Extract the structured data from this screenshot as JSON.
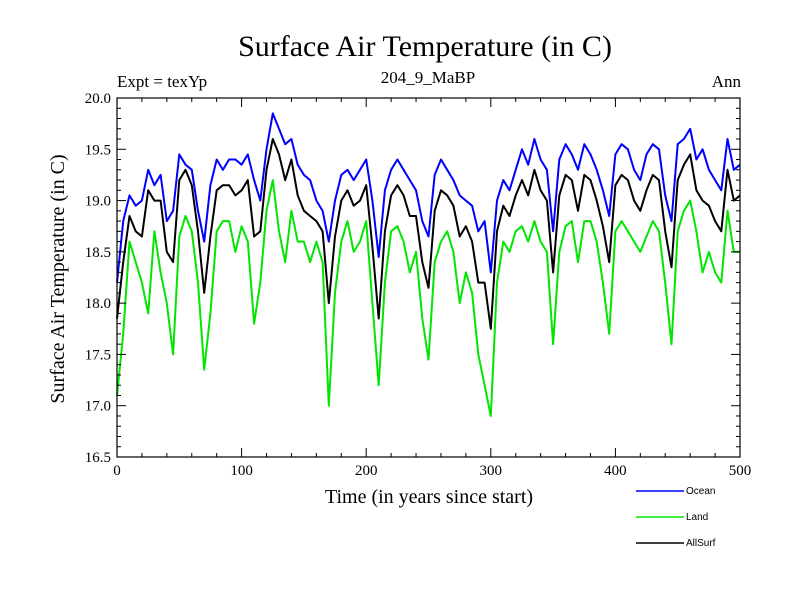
{
  "header": {
    "title": "Surface Air Temperature (in C)",
    "expt": "Expt = texYp",
    "subtitle": "204_9_MaBP",
    "period": "Ann"
  },
  "chart_data": {
    "type": "line",
    "xlabel": "Time (in years since start)",
    "ylabel": "Surface Air Temperature (in C)",
    "xlim": [
      0,
      500
    ],
    "ylim": [
      16.5,
      20.0
    ],
    "xticks": [
      0,
      100,
      200,
      300,
      400,
      500
    ],
    "xtick_labels": [
      "0",
      "100",
      "200",
      "300",
      "400",
      "500"
    ],
    "yticks": [
      16.5,
      17.0,
      17.5,
      18.0,
      18.5,
      19.0,
      19.5,
      20.0
    ],
    "ytick_labels": [
      "16.5",
      "17.0",
      "17.5",
      "18.0",
      "18.5",
      "19.0",
      "19.5",
      "20.0"
    ],
    "grid": false,
    "legend_position": "bottom-right, below plot",
    "x": [
      0,
      5,
      10,
      15,
      20,
      25,
      30,
      35,
      40,
      45,
      50,
      55,
      60,
      65,
      70,
      75,
      80,
      85,
      90,
      95,
      100,
      105,
      110,
      115,
      120,
      125,
      130,
      135,
      140,
      145,
      150,
      155,
      160,
      165,
      170,
      175,
      180,
      185,
      190,
      195,
      200,
      205,
      210,
      215,
      220,
      225,
      230,
      235,
      240,
      245,
      250,
      255,
      260,
      265,
      270,
      275,
      280,
      285,
      290,
      295,
      300,
      305,
      310,
      315,
      320,
      325,
      330,
      335,
      340,
      345,
      350,
      355,
      360,
      365,
      370,
      375,
      380,
      385,
      390,
      395,
      400,
      405,
      410,
      415,
      420,
      425,
      430,
      435,
      440,
      445,
      450,
      455,
      460,
      465,
      470,
      475,
      480,
      485,
      490,
      495,
      500
    ],
    "series": [
      {
        "name": "Ocean",
        "color": "#0000ff",
        "values": [
          18.2,
          18.8,
          19.05,
          18.95,
          19.0,
          19.3,
          19.15,
          19.25,
          18.8,
          18.9,
          19.45,
          19.35,
          19.3,
          18.9,
          18.6,
          19.15,
          19.4,
          19.3,
          19.4,
          19.4,
          19.35,
          19.45,
          19.2,
          19.0,
          19.5,
          19.85,
          19.7,
          19.55,
          19.6,
          19.35,
          19.25,
          19.2,
          19.0,
          18.9,
          18.6,
          19.0,
          19.25,
          19.3,
          19.2,
          19.3,
          19.4,
          19.0,
          18.45,
          19.1,
          19.3,
          19.4,
          19.3,
          19.2,
          19.1,
          18.8,
          18.65,
          19.25,
          19.4,
          19.3,
          19.2,
          19.05,
          19.0,
          18.95,
          18.7,
          18.8,
          18.3,
          19.0,
          19.2,
          19.1,
          19.3,
          19.5,
          19.35,
          19.6,
          19.4,
          19.3,
          18.7,
          19.4,
          19.55,
          19.45,
          19.3,
          19.55,
          19.45,
          19.3,
          19.1,
          18.85,
          19.45,
          19.55,
          19.5,
          19.3,
          19.2,
          19.45,
          19.55,
          19.5,
          19.05,
          18.8,
          19.55,
          19.6,
          19.7,
          19.4,
          19.5,
          19.3,
          19.2,
          19.1,
          19.6,
          19.3,
          19.35
        ]
      },
      {
        "name": "Land",
        "color": "#00e600",
        "values": [
          17.1,
          17.7,
          18.6,
          18.4,
          18.2,
          17.9,
          18.7,
          18.3,
          18.0,
          17.5,
          18.65,
          18.85,
          18.7,
          18.2,
          17.35,
          17.9,
          18.7,
          18.8,
          18.8,
          18.5,
          18.75,
          18.6,
          17.8,
          18.2,
          18.9,
          19.2,
          18.7,
          18.4,
          18.9,
          18.6,
          18.6,
          18.4,
          18.6,
          18.4,
          17.0,
          18.1,
          18.6,
          18.8,
          18.5,
          18.6,
          18.8,
          18.0,
          17.2,
          18.2,
          18.7,
          18.75,
          18.6,
          18.3,
          18.5,
          17.85,
          17.45,
          18.4,
          18.6,
          18.7,
          18.5,
          18.0,
          18.3,
          18.1,
          17.5,
          17.2,
          16.9,
          18.2,
          18.6,
          18.5,
          18.7,
          18.75,
          18.6,
          18.8,
          18.6,
          18.5,
          17.6,
          18.5,
          18.75,
          18.8,
          18.4,
          18.8,
          18.8,
          18.6,
          18.2,
          17.7,
          18.7,
          18.8,
          18.7,
          18.6,
          18.5,
          18.65,
          18.8,
          18.7,
          18.2,
          17.6,
          18.7,
          18.9,
          19.0,
          18.7,
          18.3,
          18.5,
          18.3,
          18.2,
          18.9,
          18.5,
          18.5
        ]
      },
      {
        "name": "AllSurf",
        "color": "#000000",
        "values": [
          17.85,
          18.4,
          18.85,
          18.7,
          18.65,
          19.1,
          19.0,
          19.0,
          18.5,
          18.4,
          19.2,
          19.3,
          19.15,
          18.7,
          18.1,
          18.65,
          19.1,
          19.15,
          19.15,
          19.05,
          19.1,
          19.2,
          18.65,
          18.7,
          19.3,
          19.6,
          19.45,
          19.2,
          19.4,
          19.05,
          18.9,
          18.85,
          18.8,
          18.7,
          18.0,
          18.65,
          19.0,
          19.1,
          18.95,
          19.0,
          19.15,
          18.55,
          17.85,
          18.7,
          19.05,
          19.15,
          19.05,
          18.85,
          18.85,
          18.4,
          18.15,
          18.9,
          19.1,
          19.05,
          18.95,
          18.65,
          18.75,
          18.6,
          18.2,
          18.2,
          17.75,
          18.7,
          18.95,
          18.85,
          19.05,
          19.2,
          19.05,
          19.3,
          19.1,
          19.0,
          18.3,
          19.05,
          19.25,
          19.2,
          18.9,
          19.25,
          19.2,
          19.0,
          18.75,
          18.4,
          19.15,
          19.25,
          19.2,
          19.0,
          18.9,
          19.1,
          19.25,
          19.2,
          18.7,
          18.35,
          19.2,
          19.35,
          19.45,
          19.1,
          19.0,
          18.95,
          18.8,
          18.7,
          19.3,
          19.0,
          19.05
        ]
      }
    ]
  }
}
